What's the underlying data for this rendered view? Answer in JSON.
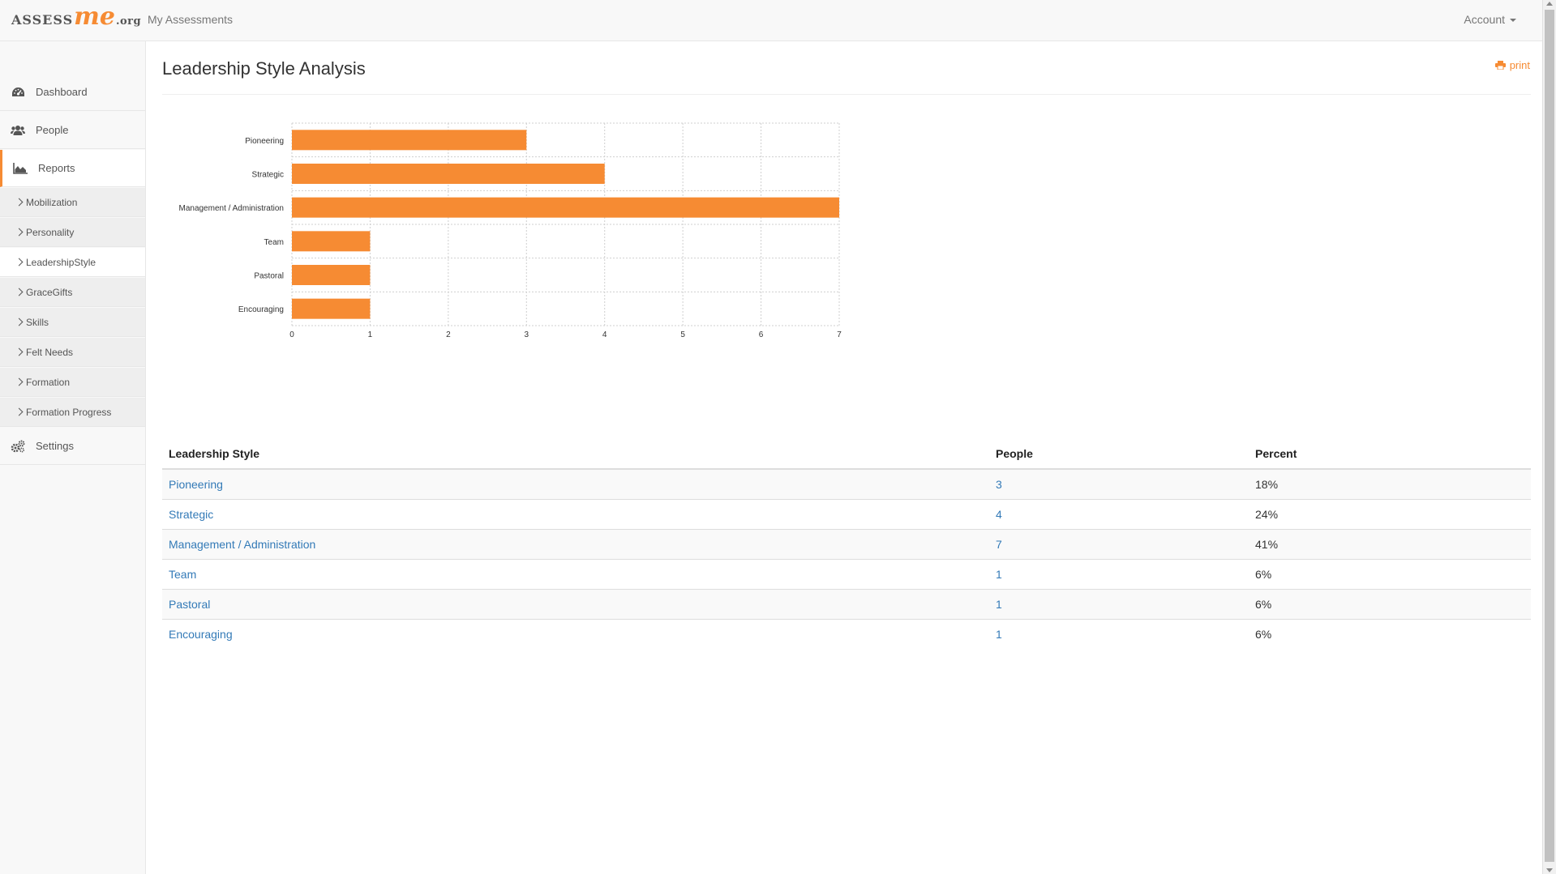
{
  "brand": {
    "part1": "ASSESS",
    "part2": "me",
    "part3": ".org"
  },
  "nav": {
    "my_assessments": "My Assessments",
    "account": "Account"
  },
  "sidebar": {
    "items": [
      {
        "label": "Dashboard",
        "icon": "dashboard-icon"
      },
      {
        "label": "People",
        "icon": "users-icon"
      },
      {
        "label": "Reports",
        "icon": "area-chart-icon",
        "active": true
      }
    ],
    "subitems": [
      "Mobilization",
      "Personality",
      "LeadershipStyle",
      "GraceGifts",
      "Skills",
      "Felt Needs",
      "Formation",
      "Formation Progress"
    ],
    "active_subitem": "LeadershipStyle",
    "settings": {
      "label": "Settings",
      "icon": "cogs-icon"
    }
  },
  "page": {
    "title": "Leadership Style Analysis",
    "print_label": "print"
  },
  "chart_data": {
    "type": "bar",
    "orientation": "horizontal",
    "categories": [
      "Pioneering",
      "Strategic",
      "Management / Administration",
      "Team",
      "Pastoral",
      "Encouraging"
    ],
    "values": [
      3,
      4,
      7,
      1,
      1,
      1
    ],
    "xlim": [
      0,
      7
    ],
    "xticks": [
      "0",
      "1",
      "2",
      "3",
      "4",
      "5",
      "6",
      "7"
    ],
    "grid": true,
    "bar_color": "#f68b33"
  },
  "table": {
    "headers": [
      "Leadership Style",
      "People",
      "Percent"
    ],
    "rows": [
      {
        "style": "Pioneering",
        "people": "3",
        "percent": "18%"
      },
      {
        "style": "Strategic",
        "people": "4",
        "percent": "24%"
      },
      {
        "style": "Management / Administration",
        "people": "7",
        "percent": "41%"
      },
      {
        "style": "Team",
        "people": "1",
        "percent": "6%"
      },
      {
        "style": "Pastoral",
        "people": "1",
        "percent": "6%"
      },
      {
        "style": "Encouraging",
        "people": "1",
        "percent": "6%"
      }
    ]
  },
  "colors": {
    "accent": "#f68b33",
    "link": "#337ab7"
  }
}
